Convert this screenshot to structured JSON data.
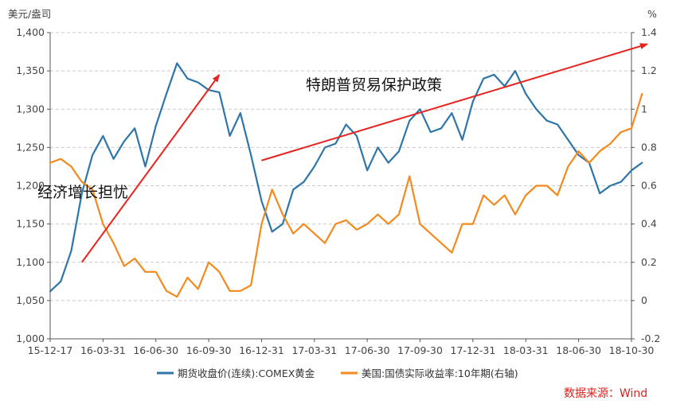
{
  "chart_data": {
    "type": "line",
    "units": {
      "left": "美元/盎司",
      "right": "%"
    },
    "x_tick_labels": [
      "15-12-17",
      "16-03-31",
      "16-06-30",
      "16-09-30",
      "16-12-31",
      "17-03-31",
      "17-06-30",
      "17-09-30",
      "17-12-31",
      "18-03-31",
      "18-06-30",
      "18-10-30"
    ],
    "left_axis": {
      "min": 1000,
      "max": 1400,
      "ticks": [
        1000,
        1050,
        1100,
        1150,
        1200,
        1250,
        1300,
        1350,
        1400
      ],
      "tick_labels": [
        "1,000",
        "1,050",
        "1,100",
        "1,150",
        "1,200",
        "1,250",
        "1,300",
        "1,350",
        "1,400"
      ]
    },
    "right_axis": {
      "min": -0.2,
      "max": 1.4,
      "ticks": [
        -0.2,
        0,
        0.2,
        0.4,
        0.6,
        0.8,
        1.0,
        1.2,
        1.4
      ],
      "tick_labels": [
        "-0.2",
        "0",
        "0.2",
        "0.4",
        "0.6",
        "0.8",
        "1",
        "1.2",
        "1.4"
      ]
    },
    "series": [
      {
        "name": "期货收盘价(连续):COMEX黄金",
        "axis": "left",
        "color": "#2e75a8",
        "x_index": [
          0,
          0.2,
          0.4,
          0.6,
          0.8,
          1.0,
          1.2,
          1.4,
          1.6,
          1.8,
          2.0,
          2.2,
          2.4,
          2.6,
          2.8,
          3.0,
          3.2,
          3.4,
          3.6,
          3.8,
          4.0,
          4.2,
          4.4,
          4.6,
          4.8,
          5.0,
          5.2,
          5.4,
          5.6,
          5.8,
          6.0,
          6.2,
          6.4,
          6.6,
          6.8,
          7.0,
          7.2,
          7.4,
          7.6,
          7.8,
          8.0,
          8.2,
          8.4,
          8.6,
          8.8,
          9.0,
          9.2,
          9.4,
          9.6,
          9.8,
          10.0,
          10.2,
          10.4,
          10.6,
          10.8,
          11.0,
          11.2
        ],
        "values": [
          1062,
          1075,
          1115,
          1190,
          1240,
          1265,
          1235,
          1258,
          1275,
          1225,
          1278,
          1320,
          1360,
          1340,
          1335,
          1325,
          1322,
          1265,
          1295,
          1240,
          1180,
          1140,
          1150,
          1195,
          1205,
          1225,
          1250,
          1255,
          1280,
          1265,
          1220,
          1250,
          1230,
          1245,
          1285,
          1300,
          1270,
          1275,
          1295,
          1260,
          1310,
          1340,
          1345,
          1330,
          1350,
          1320,
          1300,
          1285,
          1280,
          1260,
          1240,
          1230,
          1190,
          1200,
          1205,
          1220,
          1230
        ]
      },
      {
        "name": "美国:国债实际收益率:10年期(右轴)",
        "axis": "right",
        "color": "#f28a1e",
        "x_index": [
          0,
          0.2,
          0.4,
          0.6,
          0.8,
          1.0,
          1.2,
          1.4,
          1.6,
          1.8,
          2.0,
          2.2,
          2.4,
          2.6,
          2.8,
          3.0,
          3.2,
          3.4,
          3.6,
          3.8,
          4.0,
          4.2,
          4.4,
          4.6,
          4.8,
          5.0,
          5.2,
          5.4,
          5.6,
          5.8,
          6.0,
          6.2,
          6.4,
          6.6,
          6.8,
          7.0,
          7.2,
          7.4,
          7.6,
          7.8,
          8.0,
          8.2,
          8.4,
          8.6,
          8.8,
          9.0,
          9.2,
          9.4,
          9.6,
          9.8,
          10.0,
          10.2,
          10.4,
          10.6,
          10.8,
          11.0,
          11.2
        ],
        "values": [
          0.72,
          0.74,
          0.7,
          0.62,
          0.58,
          0.4,
          0.3,
          0.18,
          0.22,
          0.15,
          0.15,
          0.05,
          0.02,
          0.12,
          0.06,
          0.2,
          0.15,
          0.05,
          0.05,
          0.08,
          0.4,
          0.58,
          0.45,
          0.35,
          0.4,
          0.35,
          0.3,
          0.4,
          0.42,
          0.37,
          0.4,
          0.45,
          0.4,
          0.45,
          0.65,
          0.4,
          0.35,
          0.3,
          0.25,
          0.4,
          0.4,
          0.55,
          0.5,
          0.55,
          0.45,
          0.55,
          0.6,
          0.6,
          0.55,
          0.7,
          0.78,
          0.72,
          0.78,
          0.82,
          0.88,
          0.9,
          1.08
        ]
      }
    ],
    "annotations": [
      {
        "text": "经济增长担忧",
        "arrow": {
          "from": {
            "x_index": 0.6,
            "y_left": 1100
          },
          "to": {
            "x_index": 3.2,
            "y_left": 1345
          }
        }
      },
      {
        "text": "特朗普贸易保护政策",
        "arrow": {
          "from": {
            "x_index": 4.0,
            "y_left": 1233
          },
          "to": {
            "x_index": 11.3,
            "y_left": 1385
          }
        }
      }
    ],
    "source": "数据来源：Wind"
  }
}
